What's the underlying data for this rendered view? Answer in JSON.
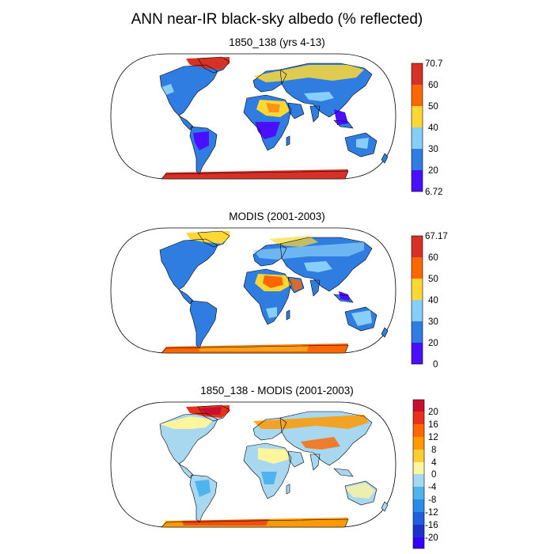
{
  "title": "ANN near-IR black-sky albedo (% reflected)",
  "panels": [
    {
      "subtitle": "1850_138 (yrs 4-13)",
      "colorbar": {
        "labels": [
          "70.7",
          "60",
          "50",
          "40",
          "30",
          "20",
          "6.72"
        ],
        "colors": [
          "#d73027",
          "#ff6600",
          "#fdd835",
          "#87cefa",
          "#2f7de1",
          "#4b0fff"
        ]
      }
    },
    {
      "subtitle": "MODIS (2001-2003)",
      "colorbar": {
        "labels": [
          "67.17",
          "60",
          "50",
          "40",
          "30",
          "20",
          "0"
        ],
        "colors": [
          "#d73027",
          "#ff6600",
          "#fdd835",
          "#87cefa",
          "#2f7de1",
          "#4b0fff"
        ]
      }
    },
    {
      "subtitle": "1850_138 - MODIS (2001-2003)",
      "colorbar": {
        "labels": [
          "20",
          "16",
          "12",
          "8",
          "4",
          "0",
          "-4",
          "-8",
          "-12",
          "-16",
          "-20"
        ],
        "colors": [
          "#c8102e",
          "#e8301a",
          "#ff6600",
          "#ff9900",
          "#ffcc33",
          "#fff59d",
          "#a8d8f0",
          "#4fb3f0",
          "#2a8ce8",
          "#2060e0",
          "#1a33cc",
          "#3300ff"
        ]
      }
    }
  ]
}
